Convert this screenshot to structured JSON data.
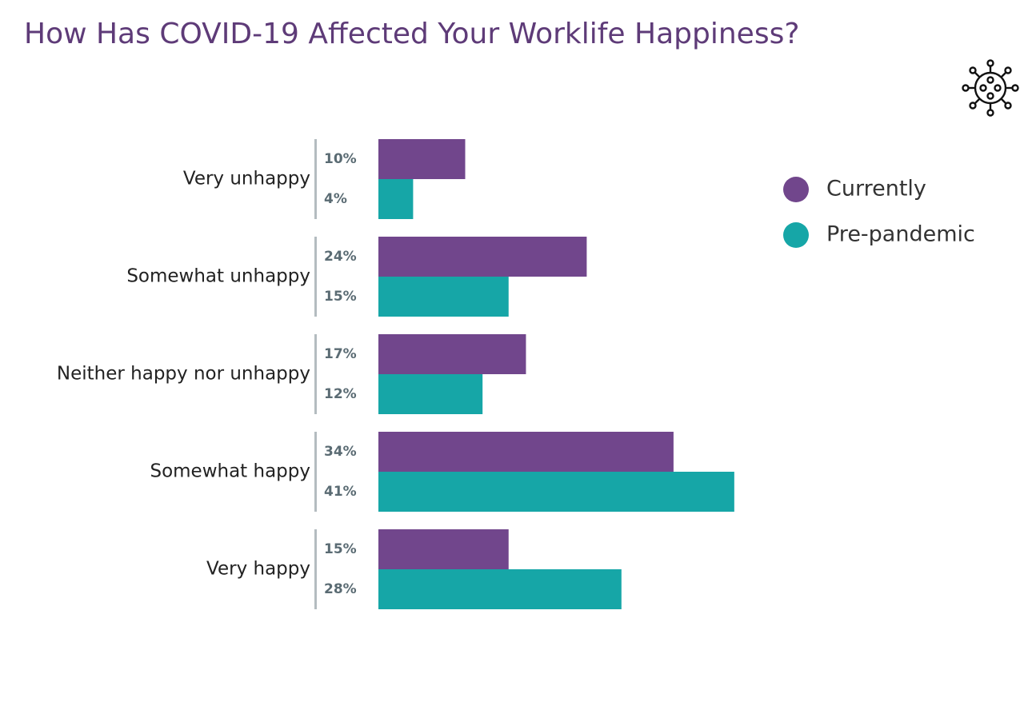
{
  "chart_data": {
    "type": "bar",
    "orientation": "horizontal",
    "title": "How Has COVID-19 Affected Your Worklife Happiness?",
    "categories": [
      "Very unhappy",
      "Somewhat unhappy",
      "Neither happy nor unhappy",
      "Somewhat happy",
      "Very happy"
    ],
    "series": [
      {
        "name": "Currently",
        "color": "#71468c",
        "values": [
          10,
          24,
          17,
          34,
          15
        ],
        "value_labels": [
          "10%",
          "24%",
          "17%",
          "34%",
          "15%"
        ]
      },
      {
        "name": "Pre-pandemic",
        "color": "#16a6a7",
        "values": [
          4,
          15,
          12,
          41,
          28
        ],
        "value_labels": [
          "4%",
          "15%",
          "12%",
          "41%",
          "28%"
        ]
      }
    ],
    "legend": "top-right"
  }
}
